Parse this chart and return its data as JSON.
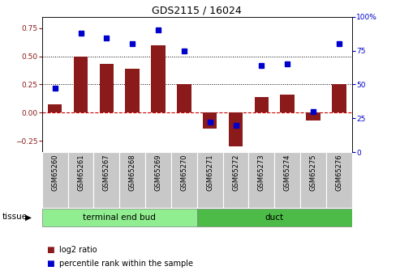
{
  "title": "GDS2115 / 16024",
  "samples": [
    "GSM65260",
    "GSM65261",
    "GSM65267",
    "GSM65268",
    "GSM65269",
    "GSM65270",
    "GSM65271",
    "GSM65272",
    "GSM65273",
    "GSM65274",
    "GSM65275",
    "GSM65276"
  ],
  "log2_ratio": [
    0.07,
    0.5,
    0.43,
    0.39,
    0.6,
    0.25,
    -0.14,
    -0.3,
    0.14,
    0.16,
    -0.07,
    0.25
  ],
  "percentile_rank": [
    47,
    88,
    84,
    80,
    90,
    75,
    22,
    20,
    64,
    65,
    30,
    80
  ],
  "groups": [
    {
      "label": "terminal end bud",
      "start": 0,
      "end": 6,
      "color": "#90EE90"
    },
    {
      "label": "duct",
      "start": 6,
      "end": 12,
      "color": "#4CBB47"
    }
  ],
  "bar_color": "#8B1A1A",
  "dot_color": "#0000CC",
  "ylim_left": [
    -0.35,
    0.85
  ],
  "ylim_right": [
    0,
    100
  ],
  "yticks_left": [
    -0.25,
    0.0,
    0.25,
    0.5,
    0.75
  ],
  "yticks_right": [
    0,
    25,
    50,
    75,
    100
  ],
  "hlines": [
    0.25,
    0.5
  ],
  "zero_line_color": "#CC0000",
  "bg_color": "#FFFFFF",
  "plot_bg": "#FFFFFF",
  "title_fontsize": 9,
  "tick_fontsize": 6.5,
  "label_fontsize": 7.5,
  "tissue_label": "tissue",
  "legend_log2": "log2 ratio",
  "legend_pct": "percentile rank within the sample",
  "bar_width": 0.55
}
